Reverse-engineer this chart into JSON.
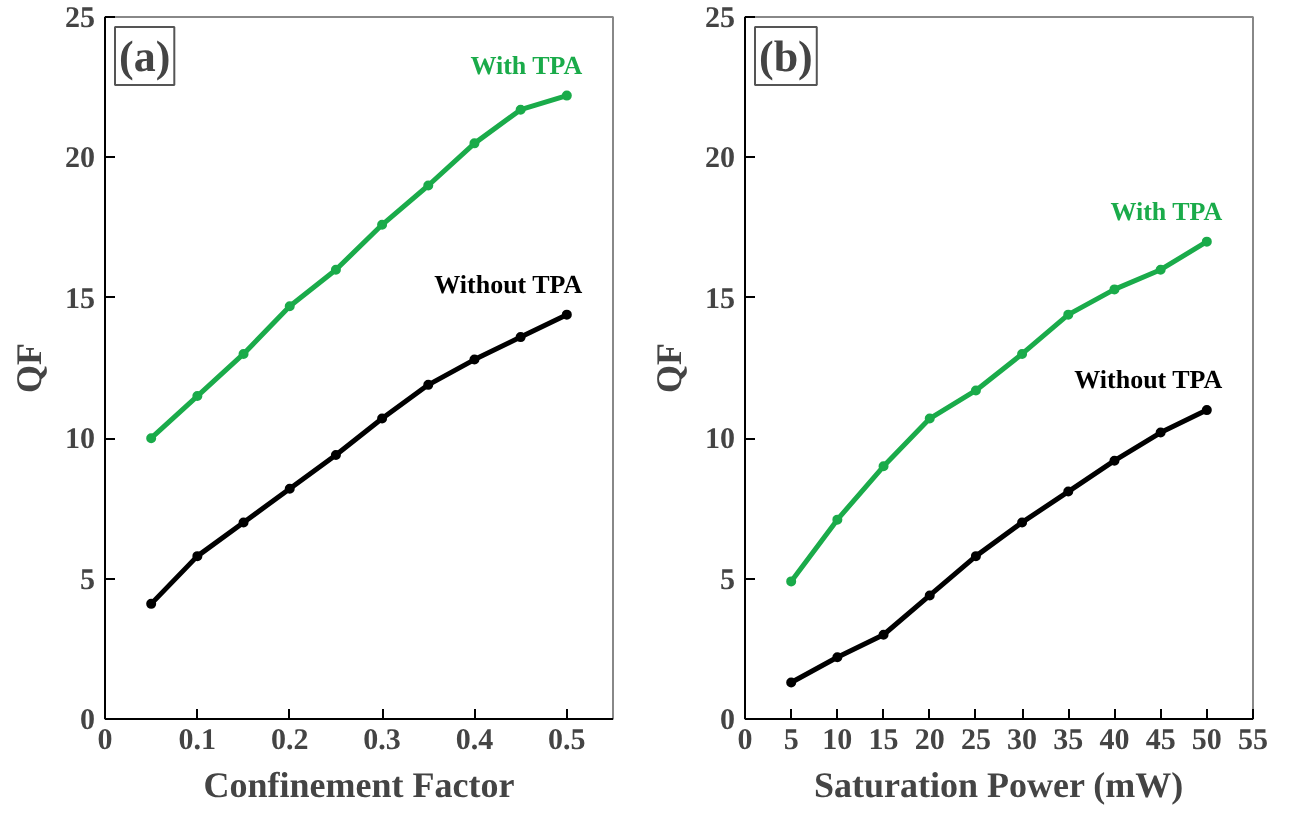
{
  "chart_data": [
    {
      "type": "line",
      "xlabel": "Confinement Factor",
      "ylabel": "QF",
      "annotations": [
        "(a)"
      ],
      "x": [
        0.05,
        0.1,
        0.15,
        0.2,
        0.25,
        0.3,
        0.35,
        0.4,
        0.45,
        0.5
      ],
      "series": [
        {
          "name": "With TPA",
          "color": "#1aab4a",
          "values": [
            10.0,
            11.5,
            13.0,
            14.7,
            16.0,
            17.6,
            19.0,
            20.5,
            21.7,
            22.2
          ]
        },
        {
          "name": "Without TPA",
          "color": "#000000",
          "values": [
            4.1,
            5.8,
            7.0,
            8.2,
            9.4,
            10.7,
            11.9,
            12.8,
            13.6,
            14.4
          ]
        }
      ],
      "xlim": [
        0,
        0.55
      ],
      "xticks": [
        0,
        0.1,
        0.2,
        0.3,
        0.4,
        0.5
      ],
      "ylim": [
        0,
        25
      ],
      "yticks": [
        0,
        5,
        10,
        15,
        20,
        25
      ],
      "grid": false,
      "legend": false,
      "marker": "circle",
      "line_style": "solid"
    },
    {
      "type": "line",
      "xlabel": "Saturation Power (mW)",
      "ylabel": "QF",
      "annotations": [
        "(b)"
      ],
      "x": [
        5,
        10,
        15,
        20,
        25,
        30,
        35,
        40,
        45,
        50
      ],
      "series": [
        {
          "name": "With TPA",
          "color": "#1aab4a",
          "values": [
            4.9,
            7.1,
            9.0,
            10.7,
            11.7,
            13.0,
            14.4,
            15.3,
            16.0,
            17.0
          ]
        },
        {
          "name": "Without TPA",
          "color": "#000000",
          "values": [
            1.3,
            2.2,
            3.0,
            4.4,
            5.8,
            7.0,
            8.1,
            9.2,
            10.2,
            11.0
          ]
        }
      ],
      "xlim": [
        0,
        55
      ],
      "xticks": [
        0,
        5,
        10,
        15,
        20,
        25,
        30,
        35,
        40,
        45,
        50,
        55
      ],
      "ylim": [
        0,
        25
      ],
      "yticks": [
        0,
        5,
        10,
        15,
        20,
        25
      ],
      "grid": false,
      "legend": false,
      "marker": "circle",
      "line_style": "solid"
    }
  ]
}
